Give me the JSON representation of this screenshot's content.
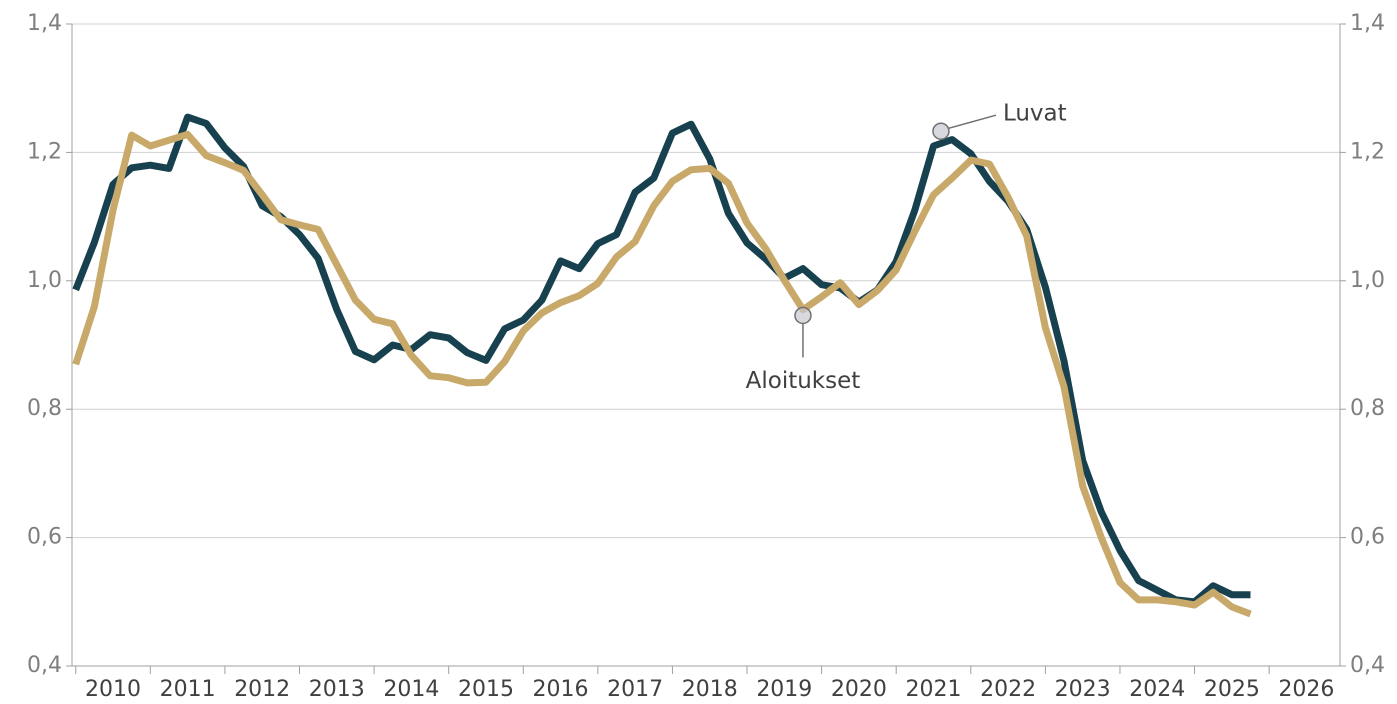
{
  "chart_data": {
    "type": "line",
    "x": [
      2010,
      2010.25,
      2010.5,
      2010.75,
      2011,
      2011.25,
      2011.5,
      2011.75,
      2012,
      2012.25,
      2012.5,
      2012.75,
      2013,
      2013.25,
      2013.5,
      2013.75,
      2014,
      2014.25,
      2014.5,
      2014.75,
      2015,
      2015.25,
      2015.5,
      2015.75,
      2016,
      2016.25,
      2016.5,
      2016.75,
      2017,
      2017.25,
      2017.5,
      2017.75,
      2018,
      2018.25,
      2018.5,
      2018.75,
      2019,
      2019.25,
      2019.5,
      2019.75,
      2020,
      2020.25,
      2020.5,
      2020.75,
      2021,
      2021.25,
      2021.5,
      2021.75,
      2022,
      2022.25,
      2022.5,
      2022.75,
      2023,
      2023.25,
      2023.5,
      2023.75,
      2024,
      2024.25,
      2024.5,
      2024.75,
      2025,
      2025.25,
      2025.5,
      2025.75
    ],
    "series": [
      {
        "name": "Luvat",
        "color": "#17414f",
        "values": [
          0.986,
          1.06,
          1.15,
          1.176,
          1.18,
          1.175,
          1.255,
          1.245,
          1.207,
          1.178,
          1.117,
          1.1,
          1.072,
          1.035,
          0.955,
          0.89,
          0.877,
          0.9,
          0.893,
          0.916,
          0.911,
          0.888,
          0.876,
          0.925,
          0.939,
          0.97,
          1.031,
          1.019,
          1.058,
          1.072,
          1.138,
          1.16,
          1.23,
          1.244,
          1.19,
          1.105,
          1.059,
          1.034,
          1.004,
          1.019,
          0.994,
          0.989,
          0.967,
          0.986,
          1.03,
          1.11,
          1.21,
          1.22,
          1.198,
          1.155,
          1.124,
          1.08,
          0.99,
          0.875,
          0.72,
          0.64,
          0.58,
          0.533,
          0.518,
          0.503,
          0.5,
          0.525,
          0.511,
          0.511
        ]
      },
      {
        "name": "Aloitukset",
        "color": "#c8a96a",
        "values": [
          0.87,
          0.96,
          1.11,
          1.227,
          1.21,
          1.219,
          1.228,
          1.195,
          1.184,
          1.172,
          1.134,
          1.095,
          1.087,
          1.08,
          1.025,
          0.97,
          0.94,
          0.933,
          0.884,
          0.852,
          0.849,
          0.841,
          0.842,
          0.874,
          0.922,
          0.95,
          0.966,
          0.977,
          0.996,
          1.037,
          1.061,
          1.117,
          1.155,
          1.173,
          1.175,
          1.152,
          1.09,
          1.05,
          1.001,
          0.955,
          0.975,
          0.997,
          0.963,
          0.985,
          1.017,
          1.077,
          1.134,
          1.16,
          1.188,
          1.182,
          1.13,
          1.07,
          0.927,
          0.835,
          0.68,
          0.6,
          0.53,
          0.503,
          0.503,
          0.5,
          0.495,
          0.515,
          0.492,
          0.481
        ]
      }
    ],
    "annotations": [
      {
        "text": "Luvat",
        "x": 2021.6,
        "y": 1.233
      },
      {
        "text": "Aloitukset",
        "x": 2019.75,
        "y": 0.946
      }
    ],
    "xlim": [
      2009.95,
      2026.95
    ],
    "xticks": [
      {
        "value": 2010,
        "label": "2010"
      },
      {
        "value": 2011,
        "label": "2011"
      },
      {
        "value": 2012,
        "label": "2012"
      },
      {
        "value": 2013,
        "label": "2013"
      },
      {
        "value": 2014,
        "label": "2014"
      },
      {
        "value": 2015,
        "label": "2015"
      },
      {
        "value": 2016,
        "label": "2016"
      },
      {
        "value": 2017,
        "label": "2017"
      },
      {
        "value": 2018,
        "label": "2018"
      },
      {
        "value": 2019,
        "label": "2019"
      },
      {
        "value": 2020,
        "label": "2020"
      },
      {
        "value": 2021,
        "label": "2021"
      },
      {
        "value": 2022,
        "label": "2022"
      },
      {
        "value": 2023,
        "label": "2023"
      },
      {
        "value": 2024,
        "label": "2024"
      },
      {
        "value": 2025,
        "label": "2025"
      },
      {
        "value": 2026,
        "label": "2026"
      }
    ],
    "ylim": [
      0.4,
      1.4
    ],
    "yticks": [
      {
        "value": 0.4,
        "label": "0,4"
      },
      {
        "value": 0.6,
        "label": "0,6"
      },
      {
        "value": 0.8,
        "label": "0,8"
      },
      {
        "value": 1.0,
        "label": "1,0"
      },
      {
        "value": 1.2,
        "label": "1,2"
      },
      {
        "value": 1.4,
        "label": "1,4"
      }
    ],
    "y2lim": [
      0.4,
      1.4
    ],
    "y2ticks": [
      {
        "value": 0.4,
        "label": "0,4"
      },
      {
        "value": 0.6,
        "label": "0,6"
      },
      {
        "value": 0.8,
        "label": "0,8"
      },
      {
        "value": 1.0,
        "label": "1,0"
      },
      {
        "value": 1.2,
        "label": "1,2"
      },
      {
        "value": 1.4,
        "label": "1,4"
      }
    ],
    "grid": true
  }
}
